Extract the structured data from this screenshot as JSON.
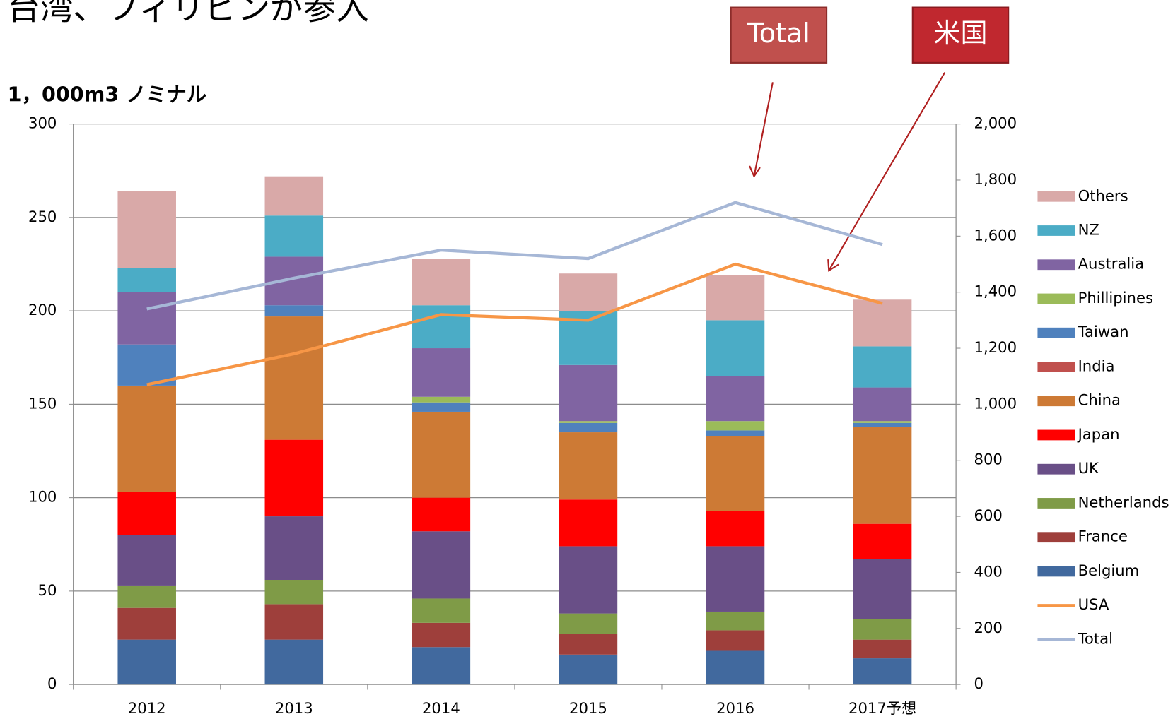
{
  "chart_data": {
    "type": "bar",
    "title": "台湾、フィリピンが参入",
    "y_label": "1，000m3 ノミナル",
    "annotations": [
      {
        "text": "Total"
      },
      {
        "text": "米国"
      }
    ],
    "categories": [
      "2012",
      "2013",
      "2014",
      "2015",
      "2016",
      "2017予想"
    ],
    "ylim": [
      0,
      300
    ],
    "yticks": [
      0,
      50,
      100,
      150,
      200,
      250,
      300
    ],
    "y2lim": [
      0,
      2000
    ],
    "y2ticks": [
      0,
      200,
      400,
      600,
      800,
      {
        "value": 1000,
        "label": "1,000"
      },
      {
        "value": 1200,
        "label": "1,200"
      },
      {
        "value": 1400,
        "label": "1,400"
      },
      {
        "value": 1600,
        "label": "1,600"
      },
      {
        "value": 1800,
        "label": "1,800"
      },
      {
        "value": 2000,
        "label": "2,000"
      }
    ],
    "grid": true,
    "stacked": true,
    "series": [
      {
        "name": "Belgium",
        "color": "#41699e",
        "values": [
          24,
          24,
          20,
          16,
          18,
          14
        ]
      },
      {
        "name": "France",
        "color": "#9e3f3b",
        "values": [
          17,
          19,
          13,
          11,
          11,
          10
        ]
      },
      {
        "name": "Netherlands",
        "color": "#7f9b47",
        "values": [
          12,
          13,
          13,
          11,
          10,
          11
        ]
      },
      {
        "name": "UK",
        "color": "#694f87",
        "values": [
          27,
          34,
          36,
          36,
          35,
          32
        ]
      },
      {
        "name": "Japan",
        "color": "#ff0000",
        "values": [
          23,
          41,
          18,
          25,
          19,
          19
        ]
      },
      {
        "name": "China",
        "color": "#cd7a35",
        "values": [
          57,
          66,
          46,
          36,
          40,
          52
        ]
      },
      {
        "name": "India",
        "color": "#c0504d",
        "values": [
          0,
          0,
          0,
          0,
          0,
          0
        ]
      },
      {
        "name": "Taiwan",
        "color": "#4f81bd",
        "values": [
          22,
          6,
          5,
          5,
          3,
          2
        ]
      },
      {
        "name": "Phillipines",
        "color": "#9bbb59",
        "values": [
          0,
          0,
          3,
          1,
          5,
          1
        ]
      },
      {
        "name": "Australia",
        "color": "#8064a2",
        "values": [
          28,
          26,
          26,
          30,
          24,
          18
        ]
      },
      {
        "name": "NZ",
        "color": "#4bacc6",
        "values": [
          13,
          22,
          23,
          29,
          30,
          22
        ]
      },
      {
        "name": "Others",
        "color": "#d9a9a8",
        "values": [
          41,
          21,
          25,
          20,
          24,
          25
        ]
      },
      {
        "name": "USA",
        "color": "#f79646",
        "type": "line",
        "axis": "y2",
        "values": [
          1070,
          1180,
          1320,
          1300,
          1500,
          1360
        ]
      },
      {
        "name": "Total",
        "color": "#a6b7d6",
        "type": "line",
        "axis": "y2",
        "values": [
          1340,
          1450,
          1550,
          1520,
          1720,
          1570
        ]
      }
    ]
  }
}
